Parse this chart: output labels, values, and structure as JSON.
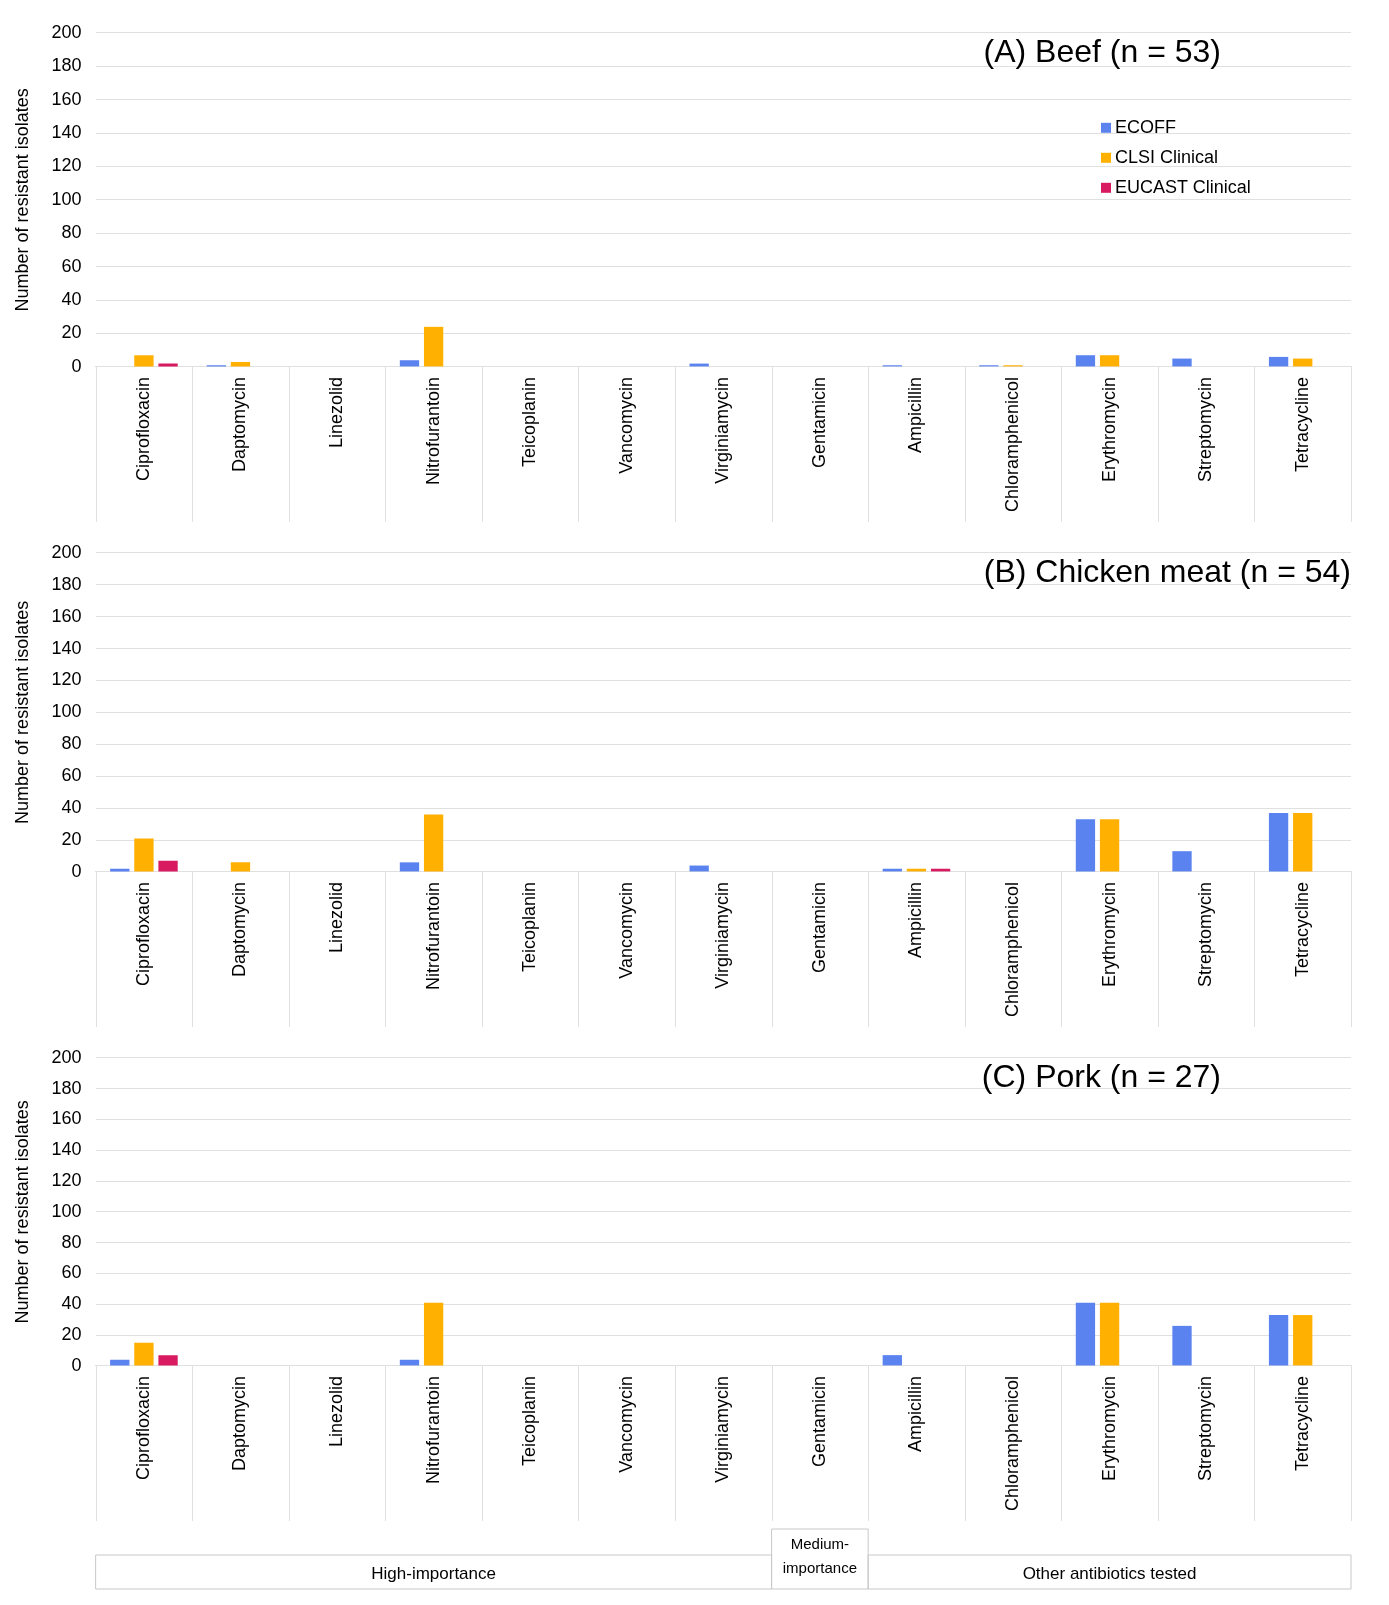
{
  "chart_data": [
    {
      "type": "bar",
      "title": "(A) Beef (n = 53)",
      "ylabel": "Number of resistant isolates",
      "categories": [
        "Ciprofloxacin",
        "Daptomycin",
        "Linezolid",
        "Nitrofurantoin",
        "Teicoplanin",
        "Vancomycin",
        "Virginiamycin",
        "Gentamicin",
        "Ampicillin",
        "Chloramphenicol",
        "Erythromycin",
        "Streptomycin",
        "Tetracycline"
      ],
      "series": [
        {
          "name": "ECOFF",
          "color": "#5b83f0",
          "values": [
            0,
            1,
            0,
            4,
            0,
            0,
            2,
            0,
            1,
            1,
            7,
            5,
            6
          ]
        },
        {
          "name": "CLSI Clinical",
          "color": "#ffb000",
          "values": [
            7,
            3,
            0,
            24,
            0,
            0,
            0,
            0,
            0,
            1,
            7,
            0,
            5
          ]
        },
        {
          "name": "EUCAST Clinical",
          "color": "#d81b60",
          "values": [
            2,
            0,
            0,
            0,
            0,
            0,
            0,
            0,
            0,
            0,
            0,
            0,
            0
          ]
        }
      ],
      "ylim": [
        0,
        200
      ],
      "yticks": [
        0,
        20,
        40,
        60,
        80,
        100,
        120,
        140,
        160,
        180,
        200
      ],
      "grid": "y",
      "legend": "top right"
    },
    {
      "type": "bar",
      "title": "(B) Chicken meat (n = 54)",
      "ylabel": "Number of resistant isolates",
      "categories": [
        "Ciprofloxacin",
        "Daptomycin",
        "Linezolid",
        "Nitrofurantoin",
        "Teicoplanin",
        "Vancomycin",
        "Virginiamycin",
        "Gentamicin",
        "Ampicillin",
        "Chloramphenicol",
        "Erythromycin",
        "Streptomycin",
        "Tetracycline"
      ],
      "series": [
        {
          "color": "#5b83f0",
          "values": [
            2,
            0,
            0,
            6,
            0,
            0,
            4,
            0,
            2,
            0,
            33,
            13,
            37
          ]
        },
        {
          "color": "#ffb000",
          "values": [
            21,
            6,
            0,
            36,
            0,
            0,
            0,
            0,
            2,
            0,
            33,
            0,
            37
          ]
        },
        {
          "color": "#d81b60",
          "values": [
            7,
            0,
            0,
            0,
            0,
            0,
            0,
            0,
            2,
            0,
            0,
            0,
            0
          ]
        }
      ],
      "ylim": [
        0,
        200
      ],
      "yticks": [
        0,
        20,
        40,
        60,
        80,
        100,
        120,
        140,
        160,
        180,
        200
      ],
      "grid": "y"
    },
    {
      "type": "bar",
      "title": "(C) Pork (n = 27)",
      "ylabel": "Number of resistant isolates",
      "categories": [
        "Ciprofloxacin",
        "Daptomycin",
        "Linezolid",
        "Nitrofurantoin",
        "Teicoplanin",
        "Vancomycin",
        "Virginiamycin",
        "Gentamicin",
        "Ampicillin",
        "Chloramphenicol",
        "Erythromycin",
        "Streptomycin",
        "Tetracycline"
      ],
      "series": [
        {
          "color": "#5b83f0",
          "values": [
            4,
            0,
            0,
            4,
            0,
            0,
            0,
            0,
            7,
            0,
            41,
            26,
            33
          ]
        },
        {
          "color": "#ffb000",
          "values": [
            15,
            0,
            0,
            41,
            0,
            0,
            0,
            0,
            0,
            0,
            41,
            0,
            33
          ]
        },
        {
          "color": "#d81b60",
          "values": [
            7,
            0,
            0,
            0,
            0,
            0,
            0,
            0,
            0,
            0,
            0,
            0,
            0
          ]
        }
      ],
      "ylim": [
        0,
        200
      ],
      "yticks": [
        0,
        20,
        40,
        60,
        80,
        100,
        120,
        140,
        160,
        180,
        200
      ],
      "grid": "y",
      "annotations": [
        "High-importance",
        "Medium-importance",
        "Other antibiotics tested"
      ]
    }
  ]
}
